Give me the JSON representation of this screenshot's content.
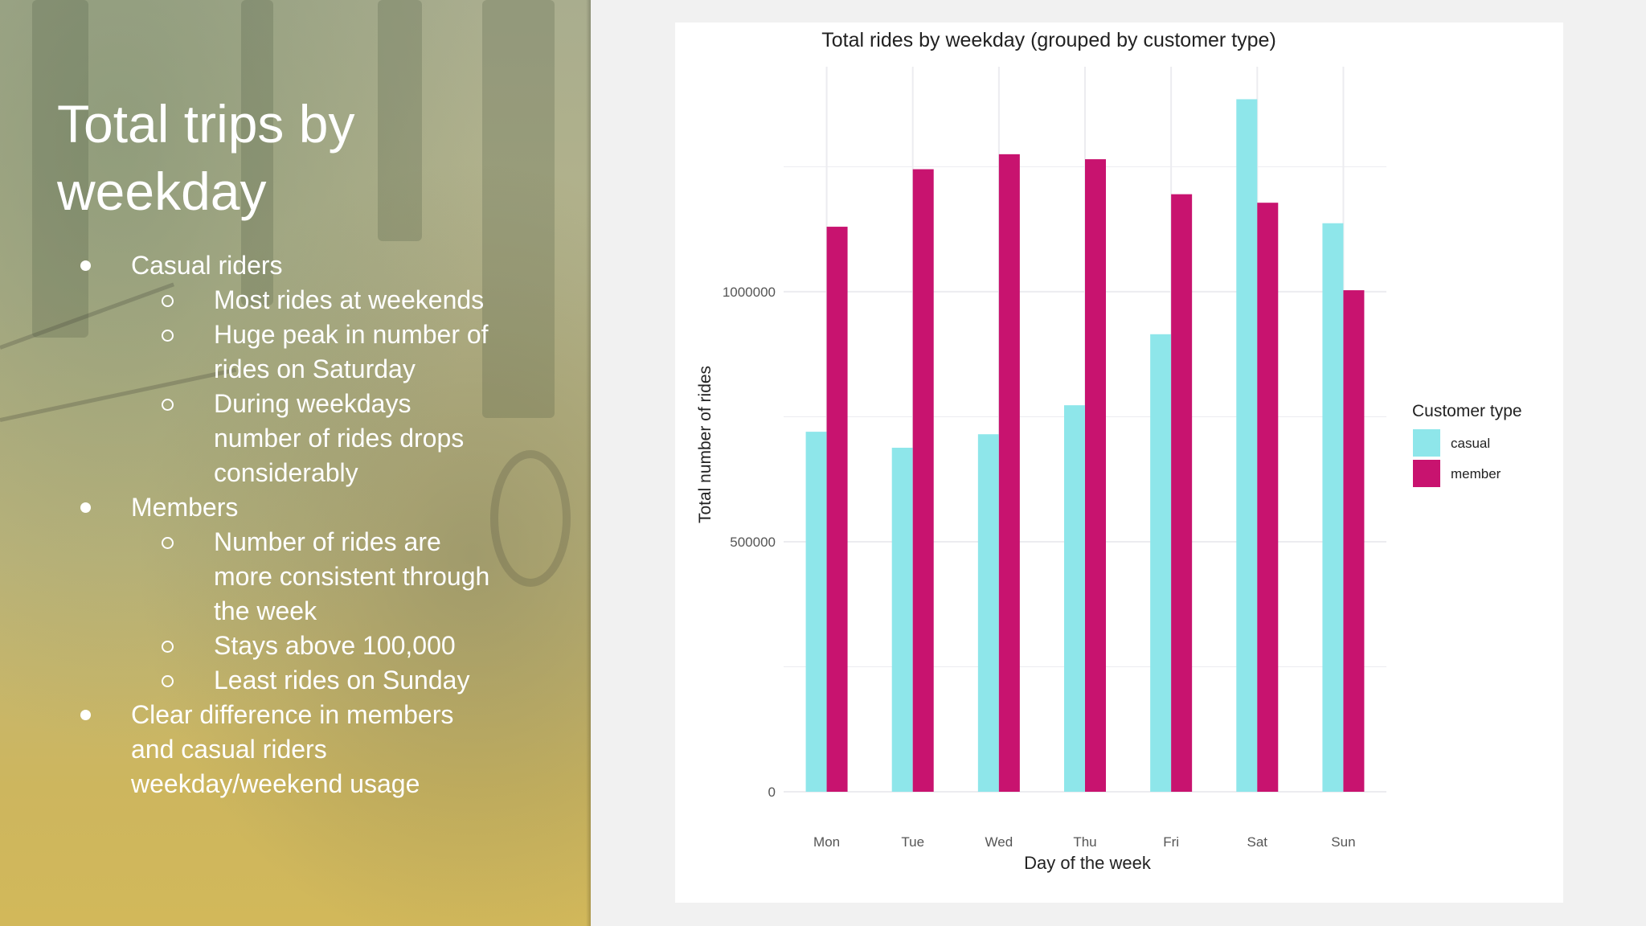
{
  "slide": {
    "title": "Total trips by weekday",
    "bullets": [
      {
        "level": 1,
        "lines": [
          "Casual riders"
        ]
      },
      {
        "level": 2,
        "lines": [
          "Most rides at weekends"
        ]
      },
      {
        "level": 2,
        "lines": [
          "Huge peak in number of",
          "rides on Saturday"
        ]
      },
      {
        "level": 2,
        "lines": [
          "During weekdays",
          "number of rides drops",
          "considerably"
        ]
      },
      {
        "level": 1,
        "lines": [
          "Members"
        ]
      },
      {
        "level": 2,
        "lines": [
          "Number of rides are",
          "more consistent through",
          "the week"
        ]
      },
      {
        "level": 2,
        "lines": [
          "Stays above 100,000"
        ]
      },
      {
        "level": 2,
        "lines": [
          "Least rides on Sunday"
        ]
      },
      {
        "level": 1,
        "lines": [
          "Clear difference in members",
          "and casual riders",
          "weekday/weekend usage"
        ]
      }
    ]
  },
  "colors": {
    "casual": "#8ee6ea",
    "member": "#c8136f",
    "grid": "#ececf0",
    "axis_text": "#555555",
    "title_text": "#222222"
  },
  "chart_data": {
    "type": "bar",
    "title": "Total rides by weekday (grouped by customer type)",
    "xlabel": "Day of the week",
    "ylabel": "Total number of rides",
    "categories": [
      "Mon",
      "Tue",
      "Wed",
      "Thu",
      "Fri",
      "Sat",
      "Sun"
    ],
    "series": [
      {
        "name": "casual",
        "values": [
          720000,
          688000,
          715000,
          773000,
          915000,
          1385000,
          1137000
        ]
      },
      {
        "name": "member",
        "values": [
          1130000,
          1245000,
          1275000,
          1265000,
          1195000,
          1178000,
          1003000
        ]
      }
    ],
    "ylim": [
      0,
      1450000
    ],
    "yticks": [
      0,
      500000,
      1000000
    ],
    "ytick_labels": [
      "0",
      "500000",
      "1000000"
    ],
    "grid": true,
    "legend": {
      "title": "Customer type",
      "position": "right",
      "entries": [
        "casual",
        "member"
      ]
    }
  }
}
